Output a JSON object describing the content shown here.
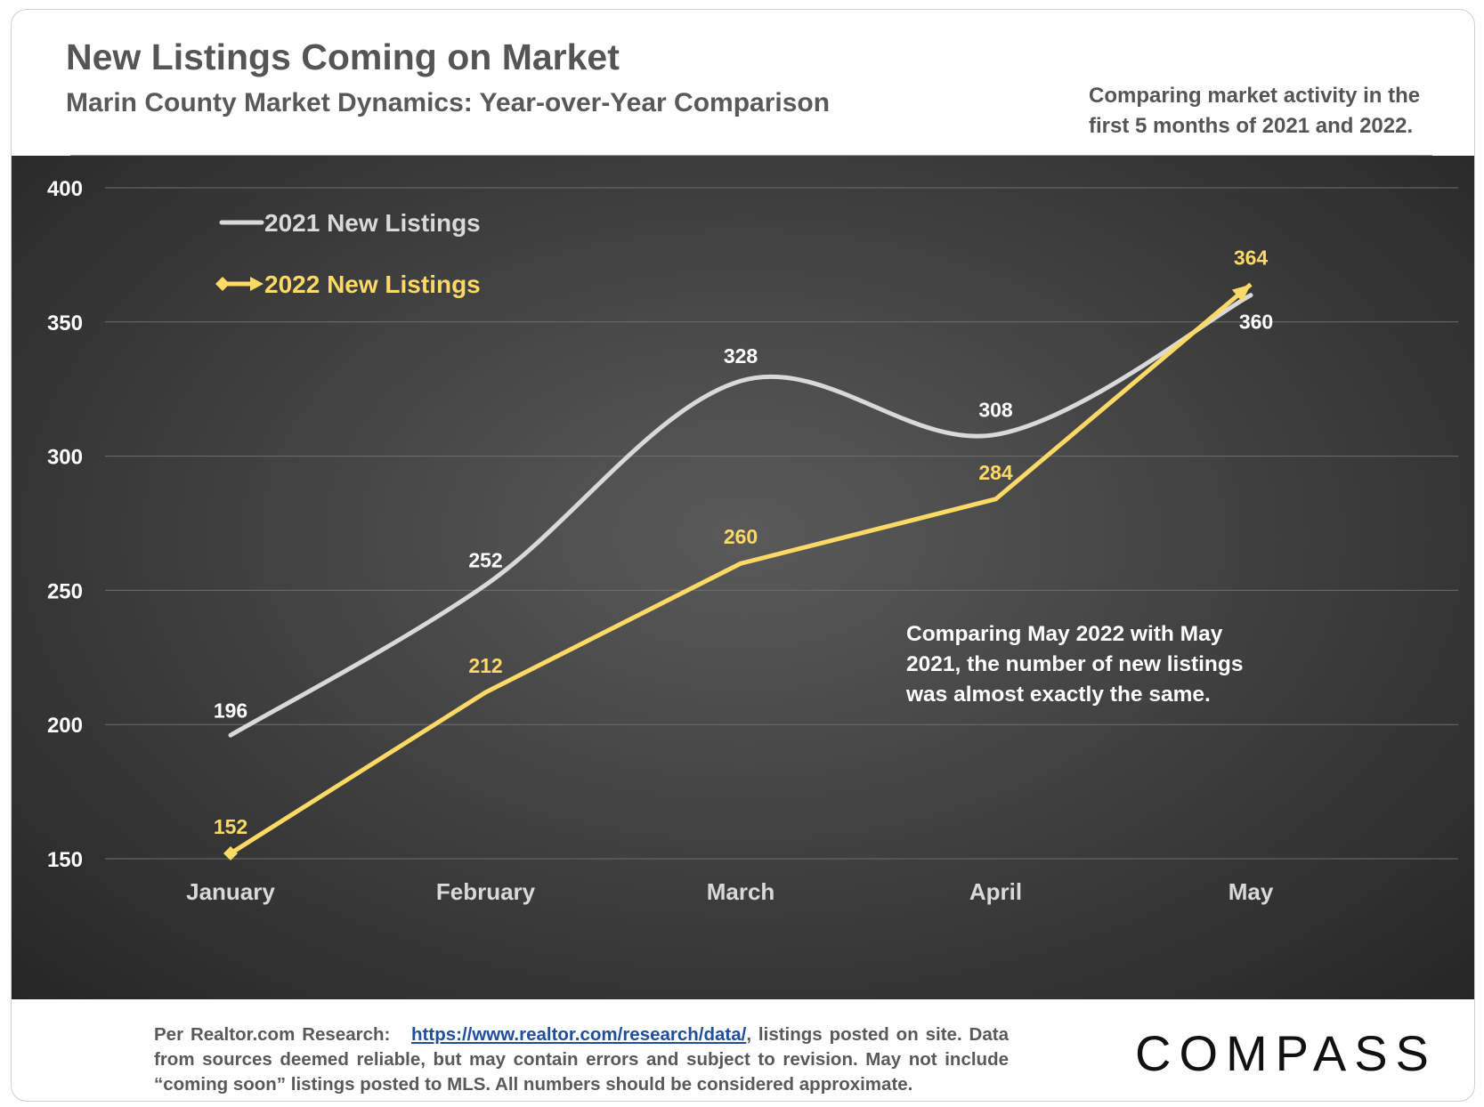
{
  "header": {
    "title": "New Listings Coming on Market",
    "subtitle": "Marin County Market Dynamics: Year-over-Year Comparison",
    "note": "Comparing market activity in the first 5 months of 2021 and 2022."
  },
  "chart_data": {
    "type": "line",
    "categories": [
      "January",
      "February",
      "March",
      "April",
      "May"
    ],
    "ylim": [
      150,
      400
    ],
    "yticks": [
      150,
      200,
      250,
      300,
      350,
      400
    ],
    "grid": true,
    "legend_position": "top-left",
    "series": [
      {
        "name": "2021 New Listings",
        "values": [
          196,
          252,
          328,
          308,
          360
        ],
        "color": "#d9d9d9",
        "smooth": true
      },
      {
        "name": "2022 New Listings",
        "values": [
          152,
          212,
          260,
          284,
          364
        ],
        "color": "#ffd966",
        "smooth": false
      }
    ],
    "annotation": "Comparing May 2022 with May 2021, the number of new listings was almost exactly the same."
  },
  "footer": {
    "prefix": "Per Realtor.com Research:",
    "link": "https://www.realtor.com/research/data/",
    "suffix": ", listings posted on site. Data from sources deemed reliable, but may contain errors and subject to revision. May not include “coming soon” listings posted to MLS. All numbers should be considered approximate."
  },
  "logo": "COMPASS"
}
